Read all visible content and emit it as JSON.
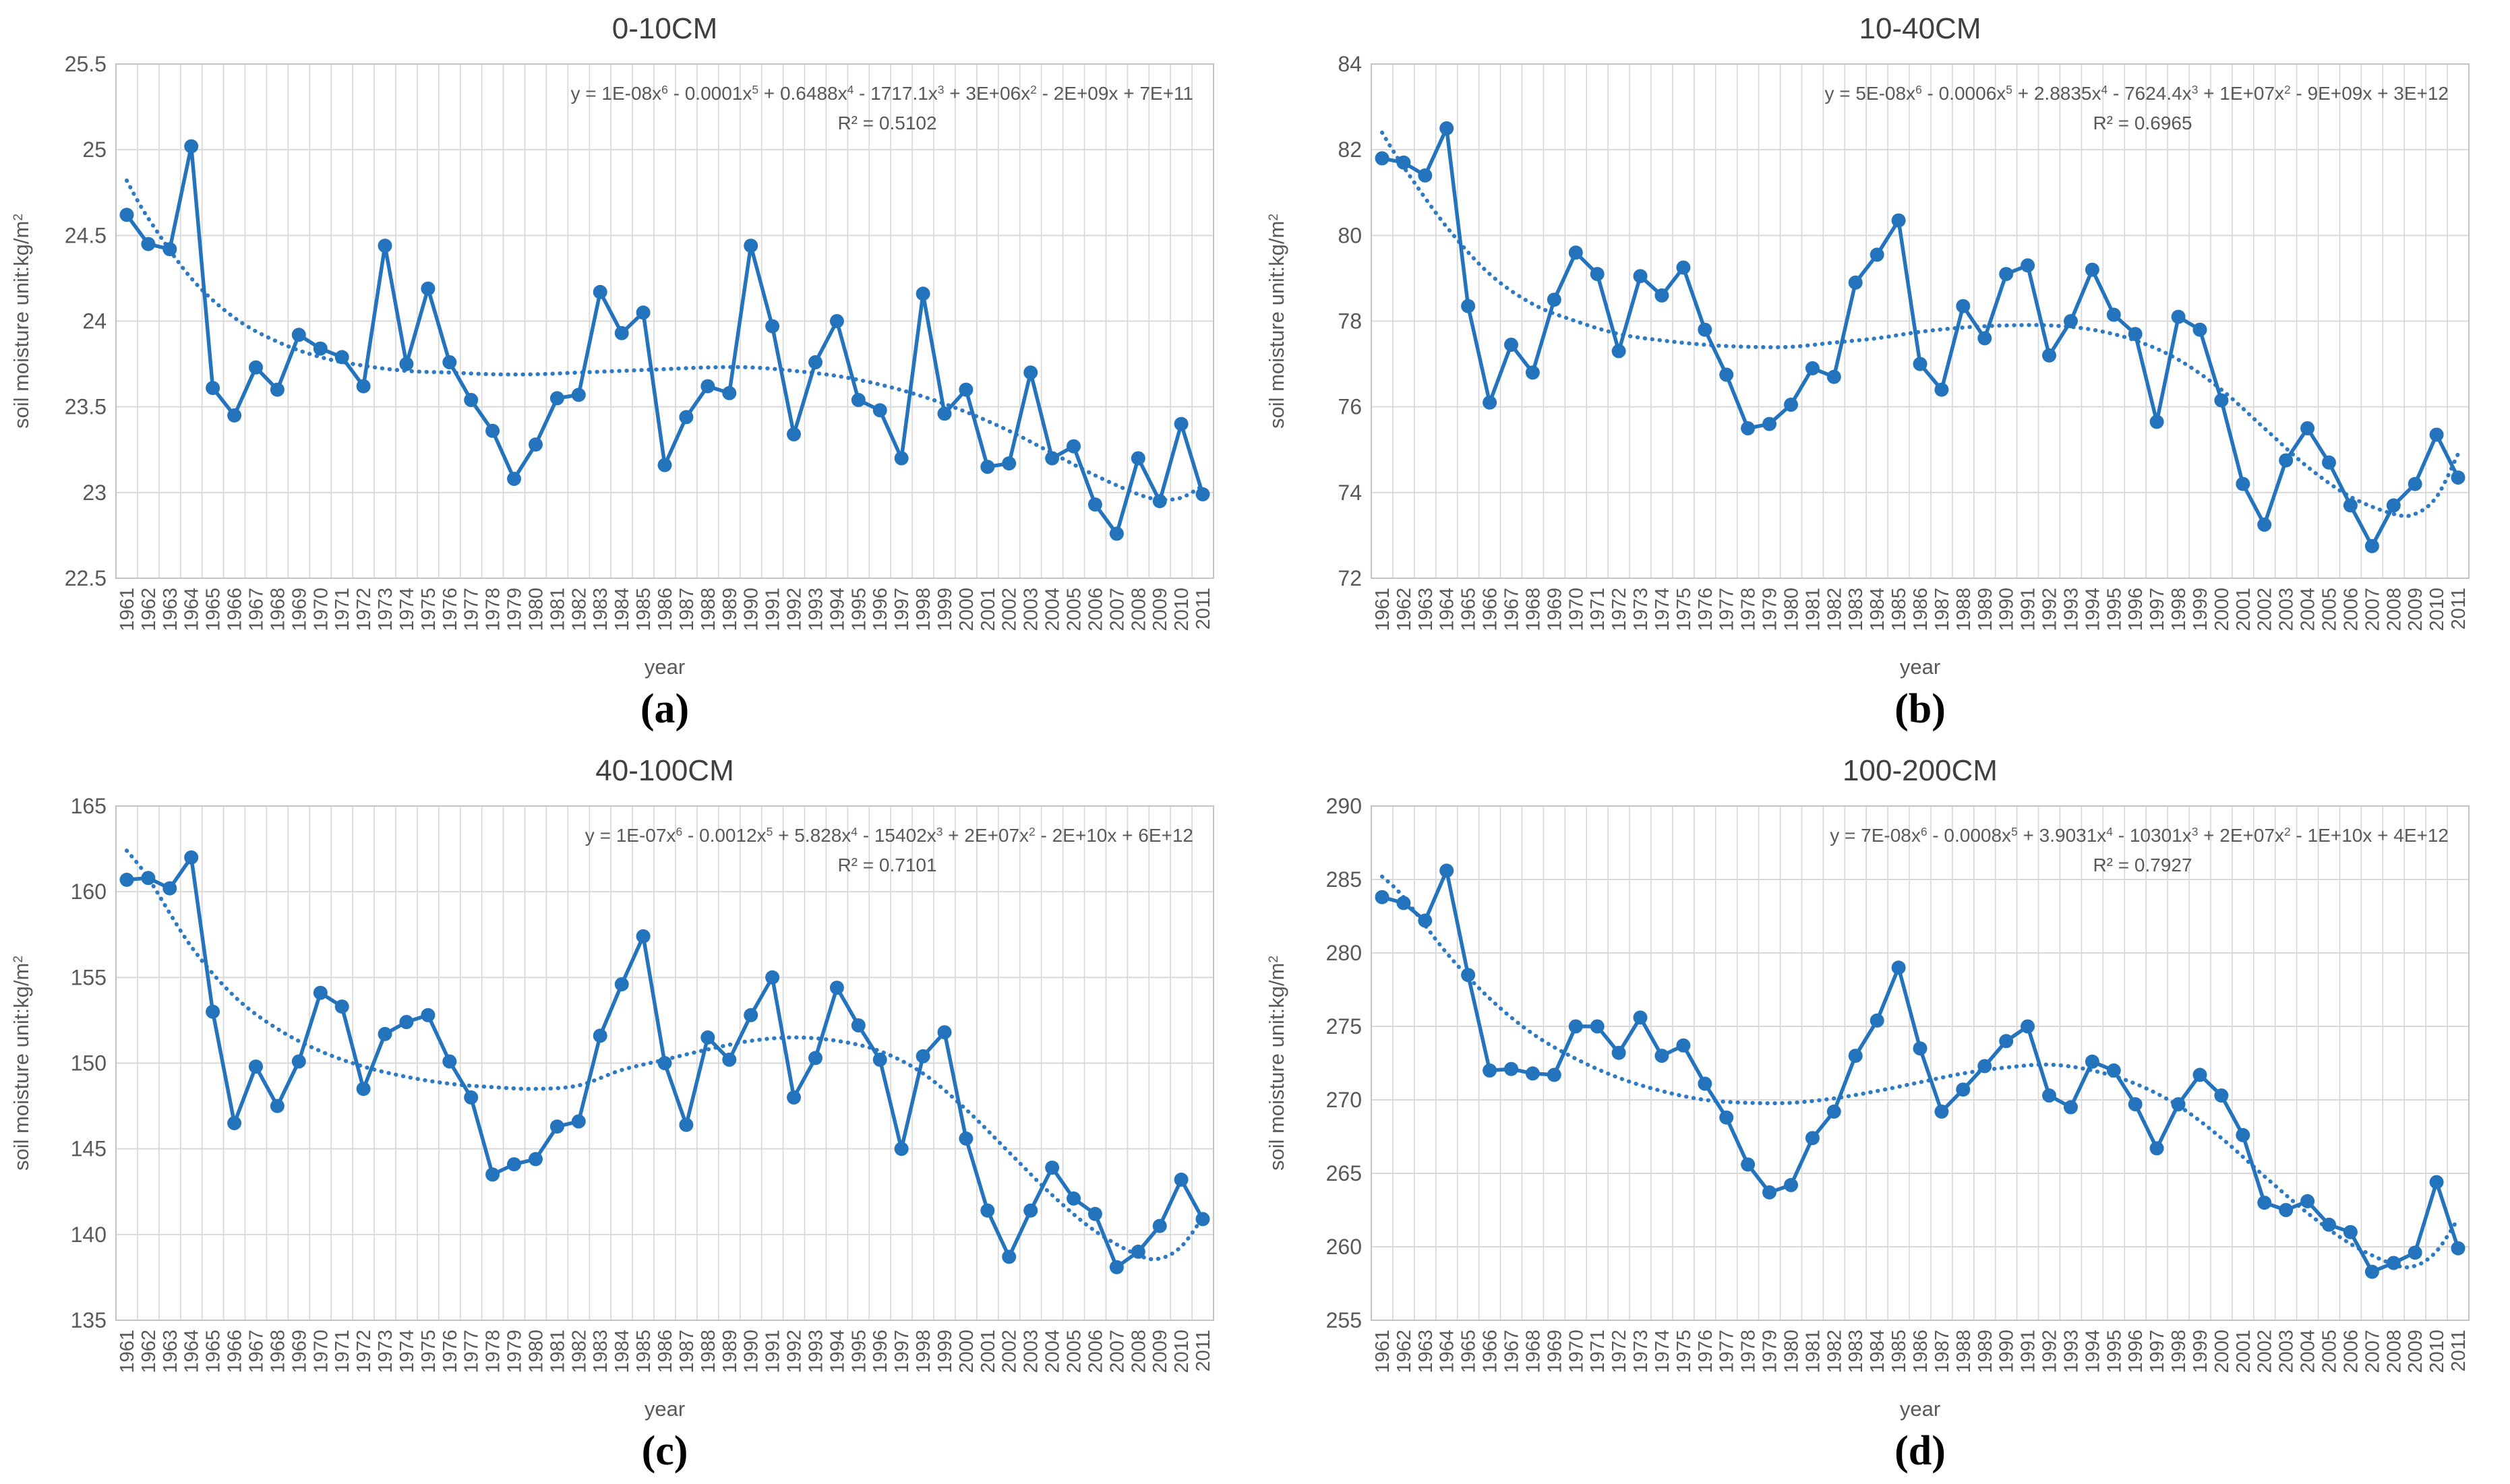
{
  "colors": {
    "series_blue": "#2373bd",
    "trend_blue": "#2e7bc4",
    "grid_gray": "#d9d9d9",
    "grid_vertical_gray": "#d6d6d6",
    "plot_border_gray": "#c3c3c3",
    "title_gray": "#404040",
    "equation_gray": "#595959",
    "tick_gray": "#595959",
    "caption_black": "#000000",
    "background": "#ffffff"
  },
  "axis_titles": {
    "x": "year",
    "y": "soil moisture  unit:kg/m^2^"
  },
  "chart_data": {
    "type": "line",
    "grid": "on",
    "legend": "none",
    "categories": [
      1961,
      1962,
      1963,
      1964,
      1965,
      1966,
      1967,
      1968,
      1969,
      1970,
      1971,
      1972,
      1973,
      1974,
      1975,
      1976,
      1977,
      1978,
      1979,
      1980,
      1981,
      1982,
      1983,
      1984,
      1985,
      1986,
      1987,
      1988,
      1989,
      1990,
      1991,
      1992,
      1993,
      1994,
      1995,
      1996,
      1997,
      1998,
      1999,
      2000,
      2001,
      2002,
      2003,
      2004,
      2005,
      2006,
      2007,
      2008,
      2009,
      2010,
      2011
    ],
    "panels": [
      {
        "key": "a",
        "caption": "(a)",
        "title": "0-10CM",
        "equation": "y = 1E-08x^6^ - 0.0001x^5^ + 0.6488x^4^ - 1717.1x^3^ + 3E+06x^2^ - 2E+09x + 7E+11",
        "r2": "R² = 0.5102",
        "xlabel": "year",
        "ylabel": "soil moisture  unit:kg/m^2^",
        "ylim": [
          22.5,
          25.5
        ],
        "ytick_step": 0.5,
        "values": [
          24.62,
          24.45,
          24.42,
          25.02,
          23.61,
          23.45,
          23.73,
          23.6,
          23.92,
          23.84,
          23.79,
          23.62,
          24.44,
          23.75,
          24.19,
          23.76,
          23.54,
          23.36,
          23.08,
          23.28,
          23.55,
          23.57,
          24.17,
          23.93,
          24.05,
          23.16,
          23.44,
          23.62,
          23.58,
          24.44,
          23.97,
          23.34,
          23.76,
          24.0,
          23.54,
          23.48,
          23.2,
          24.16,
          23.46,
          23.6,
          23.15,
          23.17,
          23.7,
          23.2,
          23.27,
          22.93,
          22.76,
          23.2,
          22.95,
          23.4,
          22.99
        ],
        "trend": [
          [
            1961,
            24.82
          ],
          [
            1962,
            24.6
          ],
          [
            1964,
            24.25
          ],
          [
            1966,
            24.02
          ],
          [
            1968,
            23.88
          ],
          [
            1970,
            23.79
          ],
          [
            1972,
            23.74
          ],
          [
            1974,
            23.71
          ],
          [
            1976,
            23.7
          ],
          [
            1978,
            23.69
          ],
          [
            1980,
            23.69
          ],
          [
            1982,
            23.7
          ],
          [
            1984,
            23.71
          ],
          [
            1986,
            23.72
          ],
          [
            1988,
            23.73
          ],
          [
            1990,
            23.73
          ],
          [
            1992,
            23.71
          ],
          [
            1994,
            23.68
          ],
          [
            1996,
            23.63
          ],
          [
            1998,
            23.56
          ],
          [
            2000,
            23.47
          ],
          [
            2002,
            23.36
          ],
          [
            2004,
            23.23
          ],
          [
            2006,
            23.1
          ],
          [
            2008,
            22.99
          ],
          [
            2009,
            22.96
          ],
          [
            2010,
            22.97
          ],
          [
            2011,
            23.04
          ]
        ]
      },
      {
        "key": "b",
        "caption": "(b)",
        "title": "10-40CM",
        "equation": "y = 5E-08x^6^ - 0.0006x^5^ + 2.8835x^4^ - 7624.4x^3^ + 1E+07x^2^ - 9E+09x + 3E+12",
        "r2": "R² = 0.6965",
        "xlabel": "year",
        "ylabel": "soil moisture  unit:kg/m^2^",
        "ylim": [
          72,
          84
        ],
        "ytick_step": 2,
        "values": [
          81.8,
          81.7,
          81.4,
          82.5,
          78.35,
          76.1,
          77.45,
          76.8,
          78.5,
          79.6,
          79.1,
          77.3,
          79.05,
          78.6,
          79.25,
          77.8,
          76.75,
          75.5,
          75.6,
          76.05,
          76.9,
          76.7,
          78.9,
          79.55,
          80.35,
          77.0,
          76.4,
          78.35,
          77.6,
          79.1,
          79.3,
          77.2,
          78.0,
          79.2,
          78.15,
          77.7,
          75.65,
          78.1,
          77.8,
          76.15,
          74.2,
          73.25,
          74.75,
          75.5,
          74.7,
          73.7,
          72.75,
          73.7,
          74.2,
          75.35,
          74.35
        ],
        "trend": [
          [
            1961,
            82.4
          ],
          [
            1962,
            81.6
          ],
          [
            1964,
            80.2
          ],
          [
            1966,
            79.1
          ],
          [
            1968,
            78.4
          ],
          [
            1970,
            78.0
          ],
          [
            1972,
            77.7
          ],
          [
            1974,
            77.55
          ],
          [
            1976,
            77.45
          ],
          [
            1978,
            77.4
          ],
          [
            1980,
            77.4
          ],
          [
            1982,
            77.5
          ],
          [
            1984,
            77.6
          ],
          [
            1986,
            77.75
          ],
          [
            1988,
            77.85
          ],
          [
            1990,
            77.9
          ],
          [
            1992,
            77.9
          ],
          [
            1994,
            77.8
          ],
          [
            1996,
            77.55
          ],
          [
            1998,
            77.1
          ],
          [
            2000,
            76.4
          ],
          [
            2002,
            75.5
          ],
          [
            2004,
            74.6
          ],
          [
            2006,
            73.9
          ],
          [
            2008,
            73.5
          ],
          [
            2009,
            73.5
          ],
          [
            2010,
            73.9
          ],
          [
            2011,
            74.9
          ]
        ]
      },
      {
        "key": "c",
        "caption": "(c)",
        "title": "40-100CM",
        "equation": "y = 1E-07x^6^ - 0.0012x^5^ + 5.828x^4^ - 15402x^3^ + 2E+07x^2^ - 2E+10x + 6E+12",
        "r2": "R² = 0.7101",
        "xlabel": "year",
        "ylabel": "soil moisture  unit:kg/m^2^",
        "ylim": [
          135,
          165
        ],
        "ytick_step": 5,
        "values": [
          160.7,
          160.8,
          160.2,
          162.0,
          153.0,
          146.5,
          149.8,
          147.5,
          150.1,
          154.1,
          153.3,
          148.5,
          151.7,
          152.4,
          152.8,
          150.1,
          148.0,
          143.5,
          144.1,
          144.4,
          146.3,
          146.6,
          151.6,
          154.6,
          157.4,
          150.0,
          146.4,
          151.5,
          150.2,
          152.8,
          155.0,
          148.0,
          150.3,
          154.4,
          152.2,
          150.2,
          145.0,
          150.4,
          151.8,
          145.6,
          141.4,
          138.7,
          141.4,
          143.9,
          142.1,
          141.2,
          138.1,
          139.0,
          140.5,
          143.2,
          140.9
        ],
        "trend": [
          [
            1961,
            162.4
          ],
          [
            1962,
            160.8
          ],
          [
            1964,
            156.8
          ],
          [
            1966,
            153.9
          ],
          [
            1968,
            152.0
          ],
          [
            1970,
            150.7
          ],
          [
            1972,
            149.8
          ],
          [
            1974,
            149.2
          ],
          [
            1976,
            148.8
          ],
          [
            1978,
            148.6
          ],
          [
            1980,
            148.5
          ],
          [
            1982,
            148.7
          ],
          [
            1984,
            149.6
          ],
          [
            1986,
            150.2
          ],
          [
            1988,
            150.8
          ],
          [
            1990,
            151.3
          ],
          [
            1992,
            151.5
          ],
          [
            1994,
            151.3
          ],
          [
            1996,
            150.7
          ],
          [
            1998,
            149.4
          ],
          [
            2000,
            147.3
          ],
          [
            2002,
            144.8
          ],
          [
            2004,
            142.3
          ],
          [
            2006,
            140.2
          ],
          [
            2008,
            138.8
          ],
          [
            2009,
            138.6
          ],
          [
            2010,
            139.3
          ],
          [
            2011,
            141.0
          ]
        ]
      },
      {
        "key": "d",
        "caption": "(d)",
        "title": "100-200CM",
        "equation": "y = 7E-08x^6^ - 0.0008x^5^ + 3.9031x^4^ - 10301x^3^ + 2E+07x^2^ - 1E+10x + 4E+12",
        "r2": "R² = 0.7927",
        "xlabel": "year",
        "ylabel": "soil moisture  unit:kg/m^2^",
        "ylim": [
          255,
          290
        ],
        "ytick_step": 5,
        "values": [
          283.8,
          283.4,
          282.2,
          285.6,
          278.5,
          272.0,
          272.1,
          271.8,
          271.7,
          275.0,
          275.0,
          273.2,
          275.6,
          273.0,
          273.7,
          271.1,
          268.8,
          265.6,
          263.7,
          264.2,
          267.4,
          269.2,
          273.0,
          275.4,
          279.0,
          273.5,
          269.2,
          270.7,
          272.3,
          274.0,
          275.0,
          270.3,
          269.5,
          272.6,
          272.0,
          269.7,
          266.7,
          269.7,
          271.7,
          270.3,
          267.6,
          263.0,
          262.5,
          263.1,
          261.5,
          261.0,
          258.3,
          258.9,
          259.6,
          264.4,
          259.9
        ],
        "trend": [
          [
            1961,
            285.2
          ],
          [
            1962,
            283.8
          ],
          [
            1964,
            280.0
          ],
          [
            1966,
            276.9
          ],
          [
            1968,
            274.5
          ],
          [
            1970,
            272.8
          ],
          [
            1972,
            271.5
          ],
          [
            1974,
            270.6
          ],
          [
            1976,
            270.0
          ],
          [
            1978,
            269.8
          ],
          [
            1980,
            269.8
          ],
          [
            1982,
            270.1
          ],
          [
            1984,
            270.6
          ],
          [
            1986,
            271.2
          ],
          [
            1988,
            271.8
          ],
          [
            1990,
            272.2
          ],
          [
            1992,
            272.4
          ],
          [
            1994,
            272.0
          ],
          [
            1996,
            271.1
          ],
          [
            1998,
            269.6
          ],
          [
            2000,
            267.4
          ],
          [
            2002,
            264.8
          ],
          [
            2004,
            262.3
          ],
          [
            2006,
            260.2
          ],
          [
            2008,
            258.8
          ],
          [
            2009,
            258.7
          ],
          [
            2010,
            259.7
          ],
          [
            2011,
            261.9
          ]
        ]
      }
    ]
  }
}
